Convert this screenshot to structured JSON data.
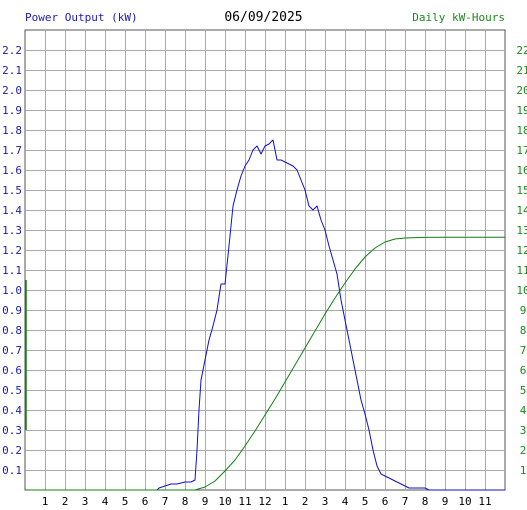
{
  "header": {
    "left_label": "Power Output (kW)",
    "date": "06/09/2025",
    "right_label": "Daily kW-Hours"
  },
  "colors": {
    "power": "#1010c8",
    "energy": "#108010",
    "left_axis_text": "#1c1ca8",
    "right_axis_text": "#1a8a1a",
    "grid": "#aaaaaa",
    "background": "#ffffff"
  },
  "chart_data": [
    {
      "type": "line",
      "series": [
        {
          "name": "Power Output (kW)",
          "axis": "left",
          "color": "#1010c8",
          "x": [
            0,
            6.6,
            6.7,
            7.0,
            7.3,
            7.6,
            8.0,
            8.3,
            8.5,
            8.6,
            8.7,
            8.8,
            9.0,
            9.2,
            9.4,
            9.6,
            9.8,
            10.0,
            10.2,
            10.4,
            10.6,
            10.8,
            11.0,
            11.2,
            11.4,
            11.6,
            11.8,
            12.0,
            12.2,
            12.4,
            12.6,
            12.8,
            13.0,
            13.2,
            13.4,
            13.6,
            13.8,
            14.0,
            14.2,
            14.4,
            14.6,
            14.8,
            15.0,
            15.2,
            15.4,
            15.6,
            15.8,
            16.0,
            16.2,
            16.4,
            16.6,
            16.8,
            17.0,
            17.2,
            17.4,
            17.6,
            17.8,
            18.0,
            18.2,
            18.4,
            18.6,
            18.8,
            19.0,
            19.2,
            19.4,
            19.6,
            19.8,
            20.0,
            20.2,
            20.5,
            20.8,
            21.0,
            21.3,
            21.5,
            21.6,
            24.0
          ],
          "values": [
            0,
            0,
            0.01,
            0.02,
            0.03,
            0.03,
            0.04,
            0.04,
            0.05,
            0.2,
            0.4,
            0.55,
            0.65,
            0.75,
            0.82,
            0.9,
            1.03,
            1.03,
            1.22,
            1.42,
            1.5,
            1.57,
            1.62,
            1.65,
            1.7,
            1.72,
            1.68,
            1.72,
            1.73,
            1.75,
            1.65,
            1.65,
            1.64,
            1.63,
            1.62,
            1.6,
            1.55,
            1.5,
            1.42,
            1.4,
            1.42,
            1.35,
            1.3,
            1.22,
            1.15,
            1.08,
            0.95,
            0.85,
            0.75,
            0.65,
            0.55,
            0.45,
            0.38,
            0.3,
            0.2,
            0.12,
            0.08,
            0.07,
            0.06,
            0.05,
            0.04,
            0.03,
            0.02,
            0.01,
            0.01,
            0.01,
            0.01,
            0.01,
            0,
            0,
            0,
            0,
            0,
            0,
            0,
            0
          ]
        },
        {
          "name": "Daily kW-Hours",
          "axis": "right",
          "color": "#108010",
          "x": [
            0,
            8.5,
            9.0,
            9.5,
            10.0,
            10.5,
            11.0,
            11.5,
            12.0,
            12.5,
            13.0,
            13.5,
            14.0,
            14.5,
            15.0,
            15.5,
            16.0,
            16.5,
            17.0,
            17.5,
            18.0,
            18.5,
            19.0,
            19.5,
            20.0,
            21.0,
            22.0,
            24.0
          ],
          "values": [
            0,
            0,
            0.15,
            0.45,
            0.95,
            1.5,
            2.2,
            2.95,
            3.75,
            4.55,
            5.4,
            6.25,
            7.1,
            7.95,
            8.8,
            9.6,
            10.35,
            11.05,
            11.65,
            12.1,
            12.4,
            12.55,
            12.6,
            12.62,
            12.63,
            12.64,
            12.64,
            12.64
          ]
        }
      ],
      "x_tick_labels": [
        "1",
        "2",
        "3",
        "4",
        "5",
        "6",
        "7",
        "8",
        "9",
        "10",
        "11",
        "12",
        "1",
        "2",
        "3",
        "4",
        "5",
        "6",
        "7",
        "8",
        "9",
        "10",
        "11"
      ],
      "y_left_ticks": [
        "0.1",
        "0.2",
        "0.3",
        "0.4",
        "0.5",
        "0.6",
        "0.7",
        "0.8",
        "0.9",
        "1.0",
        "1.1",
        "1.2",
        "1.3",
        "1.4",
        "1.5",
        "1.6",
        "1.7",
        "1.8",
        "1.9",
        "2.0",
        "2.1",
        "2.2"
      ],
      "y_right_ticks": [
        "1",
        "2",
        "3",
        "4",
        "5",
        "6",
        "7",
        "8",
        "9",
        "10",
        "11",
        "12",
        "13",
        "14",
        "15",
        "16",
        "17",
        "18",
        "19",
        "20",
        "21",
        "22"
      ],
      "xlim": [
        0,
        24
      ],
      "ylim_left": [
        0,
        2.3
      ],
      "ylim_right": [
        0,
        23
      ],
      "grid": true
    }
  ]
}
